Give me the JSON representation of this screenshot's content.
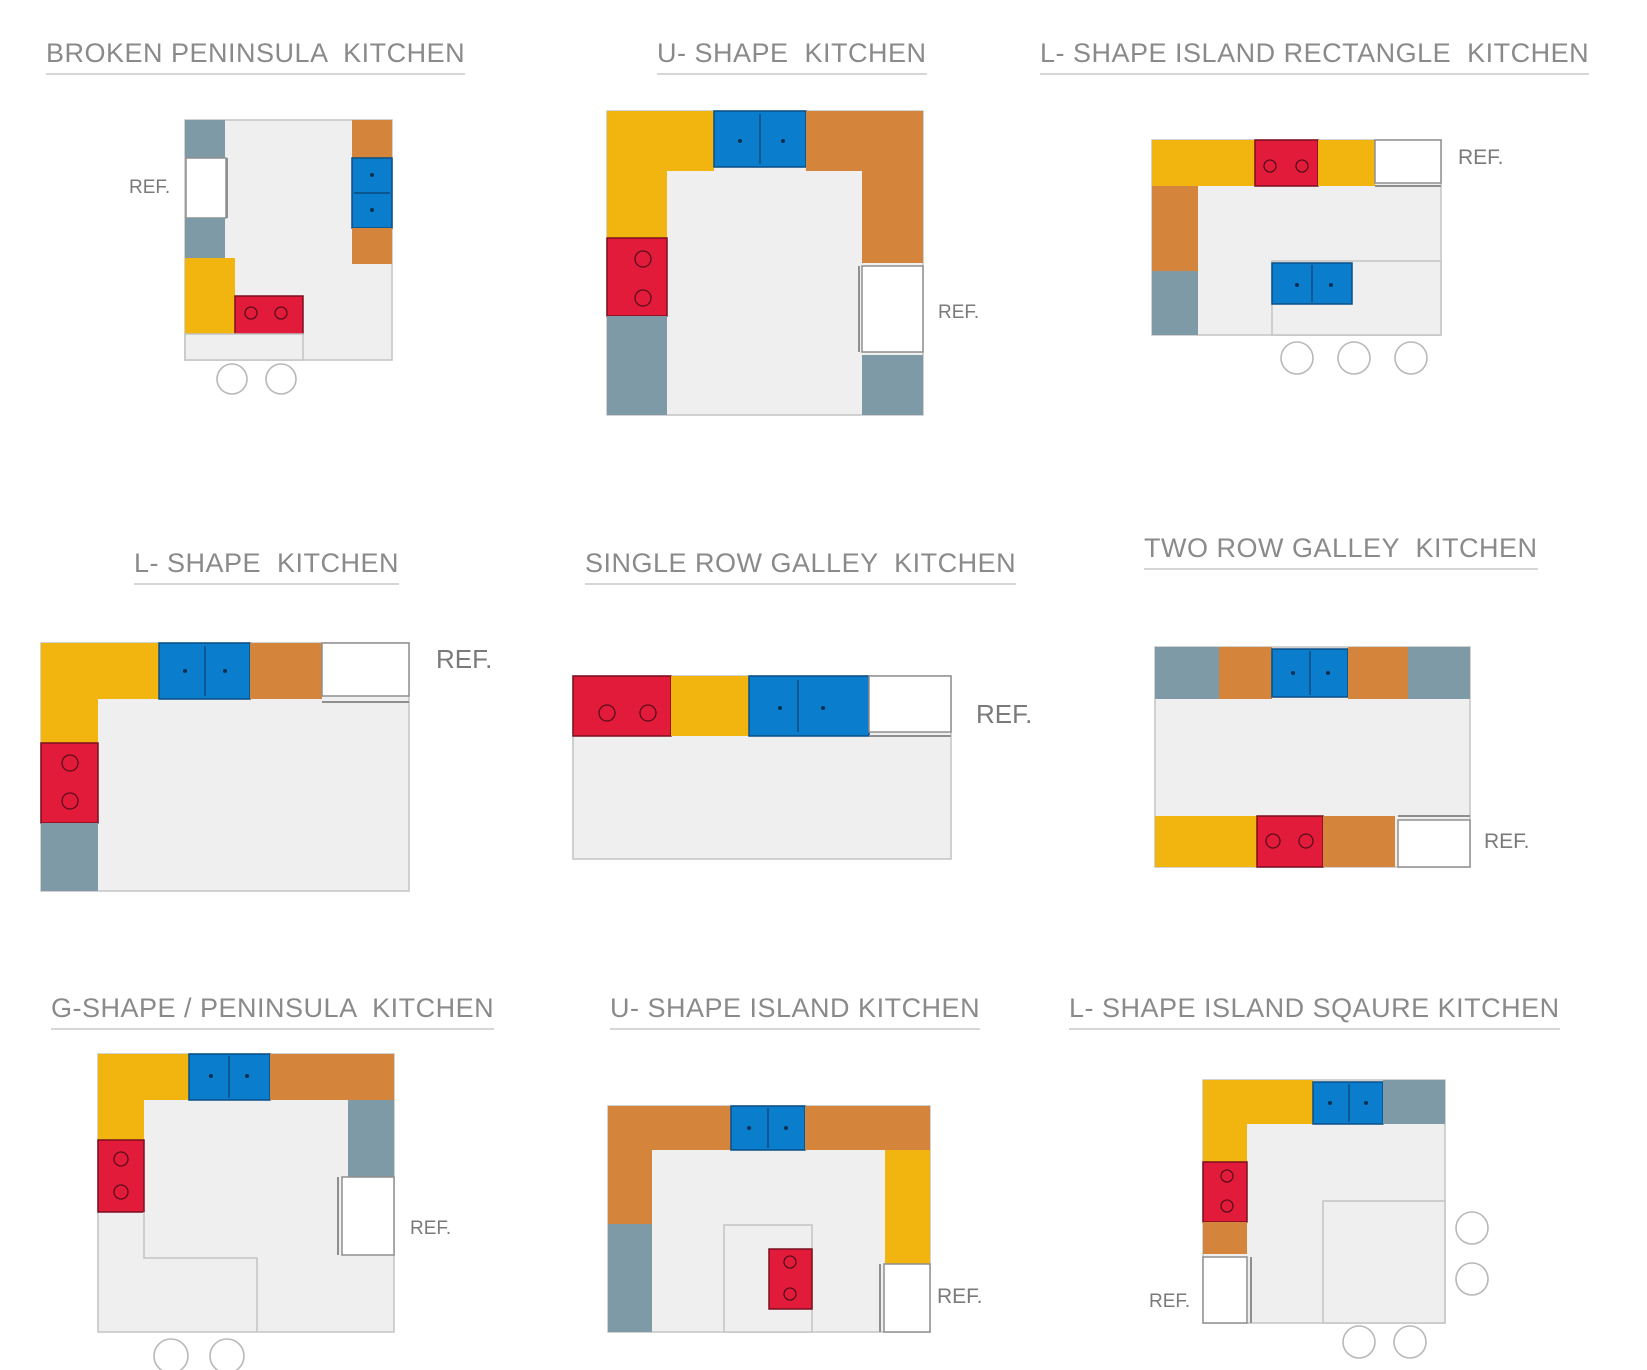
{
  "colors": {
    "floor": "#efefef",
    "floor_border": "#c4c4c4",
    "yellow_counter": "#f2b40f",
    "orange_counter": "#d5843c",
    "gray_cabinet": "#7d9aa6",
    "sink": "#0b7dcd",
    "stove": "#e31b3b",
    "refrigerator": "#ffffff"
  },
  "icons": {
    "sink": "double-basin-sink-icon",
    "stove": "two-burner-stove-icon",
    "stool": "stool-circle-icon",
    "refrigerator": "refrigerator-box-icon"
  },
  "layouts": [
    {
      "title": "BROKEN PENINSULA  KITCHEN",
      "ref_label": "REF."
    },
    {
      "title": "U- SHAPE  KITCHEN",
      "ref_label": "REF."
    },
    {
      "title": "L- SHAPE ISLAND RECTANGLE  KITCHEN",
      "ref_label": "REF."
    },
    {
      "title": "L- SHAPE  KITCHEN",
      "ref_label": "REF."
    },
    {
      "title": "SINGLE ROW GALLEY  KITCHEN",
      "ref_label": "REF."
    },
    {
      "title": "TWO ROW GALLEY  KITCHEN",
      "ref_label": "REF."
    },
    {
      "title": "G-SHAPE / PENINSULA  KITCHEN",
      "ref_label": "REF."
    },
    {
      "title": "U- SHAPE ISLAND KITCHEN",
      "ref_label": "REF."
    },
    {
      "title": "L- SHAPE ISLAND SQAURE KITCHEN",
      "ref_label": "REF."
    }
  ]
}
